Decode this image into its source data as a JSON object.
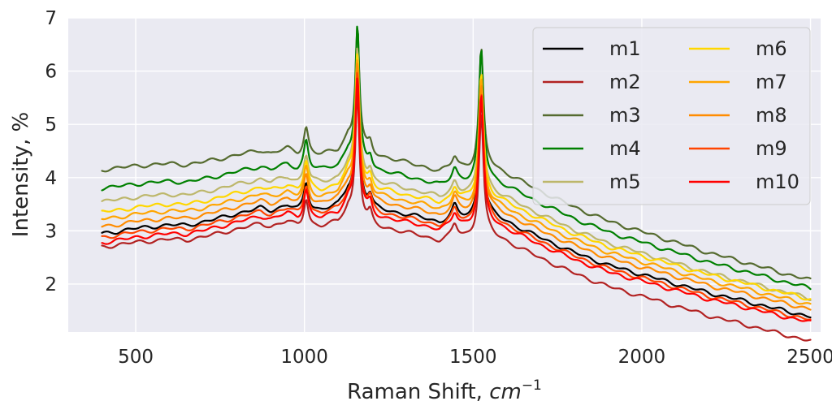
{
  "chart_data": {
    "type": "line",
    "xlabel_text": "Raman Shift, ",
    "xlabel_unit": "cm",
    "xlabel_exp": "−1",
    "ylabel": "Intensity, %",
    "xlim": [
      300,
      2530
    ],
    "ylim": [
      1.1,
      7.0
    ],
    "xticks": [
      500,
      1000,
      1500,
      2000,
      2500
    ],
    "yticks": [
      2,
      3,
      4,
      5,
      6,
      7
    ],
    "grid": true,
    "legend_position": "top-right",
    "legend_columns": 2,
    "baseline_profile": {
      "x": [
        400,
        450,
        500,
        550,
        600,
        650,
        700,
        750,
        800,
        850,
        870,
        900,
        950,
        980,
        1000,
        1050,
        1100,
        1130,
        1200,
        1250,
        1300,
        1350,
        1400,
        1450,
        1490,
        1550,
        1600,
        1700,
        1800,
        1900,
        2000,
        2100,
        2200,
        2300,
        2400,
        2500
      ],
      "offset": [
        0.0,
        0.03,
        0.07,
        0.09,
        0.11,
        0.09,
        0.14,
        0.2,
        0.27,
        0.33,
        0.36,
        0.3,
        0.39,
        0.28,
        0.3,
        0.27,
        0.35,
        0.6,
        0.25,
        0.2,
        0.12,
        0.05,
        -0.05,
        0.05,
        0.0,
        0.05,
        -0.1,
        -0.42,
        -0.72,
        -0.98,
        -1.18,
        -1.38,
        -1.58,
        -1.75,
        -1.93,
        -2.1
      ]
    },
    "peaks": [
      {
        "x": 1005,
        "width": 8,
        "scale": 0.55
      },
      {
        "x": 1157,
        "width": 7,
        "scale": 2.5
      },
      {
        "x": 1195,
        "width": 8,
        "scale": 0.25
      },
      {
        "x": 1445,
        "width": 9,
        "scale": 0.22
      },
      {
        "x": 1524,
        "width": 8,
        "scale": 2.45
      }
    ],
    "series": [
      {
        "name": "m1",
        "color": "#000000",
        "start": 2.95,
        "end_offset": 0.54,
        "peak_factor": 0.93
      },
      {
        "name": "m2",
        "color": "#b22222",
        "start": 2.7,
        "end_offset": 0.33,
        "peak_factor": 0.94
      },
      {
        "name": "m3",
        "color": "#556b2f",
        "start": 4.15,
        "end_offset": 0.02,
        "peak_factor": 0.9
      },
      {
        "name": "m4",
        "color": "#008000",
        "start": 3.8,
        "end_offset": 0.22,
        "peak_factor": 1.0
      },
      {
        "name": "m5",
        "color": "#bdb76b",
        "start": 3.55,
        "end_offset": 0.28,
        "peak_factor": 0.92
      },
      {
        "name": "m6",
        "color": "#ffd700",
        "start": 3.35,
        "end_offset": 0.47,
        "peak_factor": 0.95
      },
      {
        "name": "m7",
        "color": "#ffa500",
        "start": 3.22,
        "end_offset": 0.5,
        "peak_factor": 0.96
      },
      {
        "name": "m8",
        "color": "#ff8c00",
        "start": 3.08,
        "end_offset": 0.55,
        "peak_factor": 0.97
      },
      {
        "name": "m9",
        "color": "#ff4500",
        "start": 2.88,
        "end_offset": 0.55,
        "peak_factor": 0.98
      },
      {
        "name": "m10",
        "color": "#ff0000",
        "start": 2.78,
        "end_offset": 0.6,
        "peak_factor": 0.98
      }
    ]
  }
}
